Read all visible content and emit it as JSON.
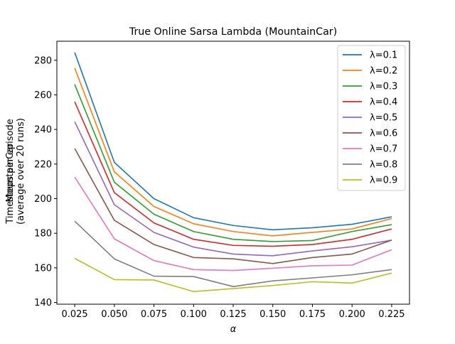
{
  "chart_data": {
    "type": "line",
    "title": "True Online Sarsa Lambda (MountainCar)",
    "xlabel": "α",
    "ylabel_lines": [
      "Timesteps per episode",
      "(average over 20 runs)"
    ],
    "ylabel_overprint": "MountainCar",
    "x": [
      0.025,
      0.05,
      0.075,
      0.1,
      0.125,
      0.15,
      0.175,
      0.2,
      0.225
    ],
    "xticks": [
      "0.025",
      "0.050",
      "0.075",
      "0.100",
      "0.125",
      "0.150",
      "0.175",
      "0.200",
      "0.225"
    ],
    "xlim": [
      0.01375,
      0.23625
    ],
    "yticks": [
      140,
      160,
      180,
      200,
      220,
      240,
      260,
      280
    ],
    "ylim": [
      139,
      291
    ],
    "legend_position": "top-right",
    "series": [
      {
        "name": "λ=0.1",
        "color": "#1f77b4",
        "values": [
          284.5,
          221.0,
          200.0,
          189.0,
          184.5,
          182.0,
          183.2,
          185.2,
          189.5
        ]
      },
      {
        "name": "λ=0.2",
        "color": "#ff7f0e",
        "values": [
          275.5,
          215.5,
          195.5,
          185.5,
          181.0,
          178.5,
          180.5,
          182.5,
          188.5
        ]
      },
      {
        "name": "λ=0.3",
        "color": "#2ca02c",
        "values": [
          266.0,
          209.5,
          191.0,
          181.0,
          176.5,
          175.2,
          175.8,
          181.0,
          185.0
        ]
      },
      {
        "name": "λ=0.4",
        "color": "#d62728",
        "values": [
          256.0,
          203.5,
          186.0,
          176.5,
          173.0,
          172.5,
          173.5,
          176.5,
          182.5
        ]
      },
      {
        "name": "λ=0.5",
        "color": "#9467bd",
        "values": [
          244.5,
          196.5,
          180.5,
          172.0,
          168.0,
          167.0,
          169.8,
          172.2,
          176.0
        ]
      },
      {
        "name": "λ=0.6",
        "color": "#8c564b",
        "values": [
          229.0,
          187.5,
          173.5,
          166.0,
          165.2,
          162.5,
          166.0,
          168.0,
          176.0
        ]
      },
      {
        "name": "λ=0.7",
        "color": "#e377c2",
        "values": [
          212.5,
          176.8,
          164.2,
          159.0,
          158.5,
          159.8,
          161.2,
          161.6,
          170.5
        ]
      },
      {
        "name": "λ=0.8",
        "color": "#7f7f7f",
        "values": [
          187.0,
          165.2,
          155.2,
          155.0,
          149.2,
          152.5,
          154.2,
          156.0,
          159.0
        ]
      },
      {
        "name": "λ=0.9",
        "color": "#bcbd22",
        "values": [
          165.5,
          153.2,
          153.0,
          146.3,
          148.0,
          149.8,
          152.0,
          151.2,
          157.0
        ]
      }
    ]
  }
}
